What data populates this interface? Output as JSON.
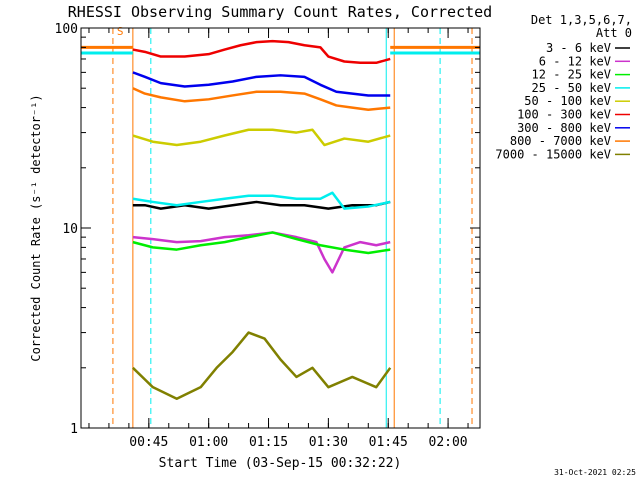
{
  "chart_data": {
    "type": "line",
    "title": "RHESSI Observing Summary Count Rates, Corrected",
    "xlabel": "Start Time (03-Sep-15 00:32:22)",
    "ylabel": "Corrected Count Rate (s⁻¹ detector⁻¹)",
    "yscale": "log",
    "ylim": [
      1,
      100
    ],
    "xlim_minutes_since_midnight": [
      28,
      128
    ],
    "x_ticks": [
      {
        "label": "00:45",
        "minute": 45
      },
      {
        "label": "01:00",
        "minute": 60
      },
      {
        "label": "01:15",
        "minute": 75
      },
      {
        "label": "01:30",
        "minute": 90
      },
      {
        "label": "01:45",
        "minute": 105
      },
      {
        "label": "02:00",
        "minute": 120
      }
    ],
    "y_ticks": [
      {
        "label": "1",
        "value": 1
      },
      {
        "label": "10",
        "value": 10
      },
      {
        "label": "100",
        "value": 100
      }
    ],
    "legend": {
      "position": "right",
      "header": [
        "Det 1,3,5,6,7,",
        "Att 0"
      ]
    },
    "series": [
      {
        "name": "3 - 6 keV",
        "color": "#000000",
        "x": [
          41,
          44,
          48,
          54,
          60,
          66,
          72,
          78,
          84,
          90,
          96,
          102,
          105.5
        ],
        "y": [
          13,
          13,
          12.5,
          13,
          12.5,
          13,
          13.5,
          13,
          13,
          12.5,
          13,
          13,
          13.5
        ]
      },
      {
        "name": "6 - 12 keV",
        "color": "#cc33cc",
        "x": [
          41,
          46,
          52,
          58,
          64,
          70,
          76,
          82,
          87,
          89,
          91,
          94,
          98,
          102,
          105.5
        ],
        "y": [
          9,
          8.8,
          8.5,
          8.6,
          9,
          9.2,
          9.5,
          9,
          8.5,
          7,
          6,
          8,
          8.5,
          8.2,
          8.5
        ]
      },
      {
        "name": "12 - 25 keV",
        "color": "#00ee00",
        "x": [
          41,
          46,
          52,
          58,
          64,
          70,
          76,
          82,
          88,
          94,
          100,
          105.5
        ],
        "y": [
          8.5,
          8,
          7.8,
          8.2,
          8.5,
          9,
          9.5,
          8.8,
          8.2,
          7.8,
          7.5,
          7.8
        ]
      },
      {
        "name": "25 - 50 keV",
        "color": "#00eeee",
        "x": [
          41,
          46,
          52,
          58,
          64,
          70,
          76,
          82,
          88,
          91,
          94,
          100,
          105.5
        ],
        "y": [
          14,
          13.5,
          13,
          13.5,
          14,
          14.5,
          14.5,
          14,
          14,
          15,
          12.5,
          12.8,
          13.5
        ]
      },
      {
        "name": "50 - 100 keV",
        "color": "#cccc00",
        "x": [
          41,
          46,
          52,
          58,
          64,
          70,
          76,
          82,
          86,
          89,
          94,
          100,
          105.5
        ],
        "y": [
          29,
          27,
          26,
          27,
          29,
          31,
          31,
          30,
          31,
          26,
          28,
          27,
          29
        ]
      },
      {
        "name": "100 - 300 keV",
        "color": "#ee0000",
        "x": [
          41,
          44,
          48,
          54,
          60,
          64,
          68,
          72,
          76,
          80,
          84,
          88,
          90,
          94,
          98,
          102,
          105.5
        ],
        "y": [
          78,
          76,
          72,
          72,
          74,
          78,
          82,
          85,
          86,
          85,
          82,
          80,
          72,
          68,
          67,
          67,
          70
        ]
      },
      {
        "name": "300 - 800 keV",
        "color": "#0000ee",
        "x": [
          41,
          44,
          48,
          54,
          60,
          66,
          72,
          78,
          84,
          88,
          92,
          96,
          100,
          105.5
        ],
        "y": [
          60,
          57,
          53,
          51,
          52,
          54,
          57,
          58,
          57,
          52,
          48,
          47,
          46,
          46
        ]
      },
      {
        "name": "800 - 7000 keV",
        "color": "#ff7700",
        "x": [
          41,
          44,
          48,
          54,
          60,
          66,
          72,
          78,
          84,
          88,
          92,
          96,
          100,
          105.5
        ],
        "y": [
          50,
          47,
          45,
          43,
          44,
          46,
          48,
          48,
          47,
          44,
          41,
          40,
          39,
          40
        ]
      },
      {
        "name": "7000 - 15000 keV",
        "color": "#808000",
        "x": [
          41,
          46,
          52,
          58,
          62,
          66,
          70,
          74,
          78,
          82,
          86,
          90,
          96,
          102,
          105.5
        ],
        "y": [
          2,
          1.6,
          1.4,
          1.6,
          2,
          2.4,
          3,
          2.8,
          2.2,
          1.8,
          2,
          1.6,
          1.8,
          1.6,
          2
        ]
      }
    ],
    "annotations": [
      {
        "text": "S",
        "minute": 36,
        "value": 84,
        "color": "#ff7700"
      }
    ],
    "markers": [
      {
        "minute": 36,
        "style": "dashed",
        "color": "#ff7700"
      },
      {
        "minute": 41,
        "style": "solid",
        "color": "#ff7700"
      },
      {
        "minute": 45.5,
        "style": "dashed",
        "color": "#00eeee"
      },
      {
        "minute": 104.5,
        "style": "solid",
        "color": "#00eeee"
      },
      {
        "minute": 106.5,
        "style": "solid",
        "color": "#ff7700"
      },
      {
        "minute": 118,
        "style": "dashed",
        "color": "#00eeee"
      },
      {
        "minute": 126,
        "style": "dashed",
        "color": "#ff7700"
      }
    ],
    "outside_segments": [
      {
        "color": "#ff7700",
        "x": [
          28,
          41
        ],
        "y": [
          80,
          80
        ]
      },
      {
        "color": "#00eeee",
        "x": [
          28,
          41
        ],
        "y": [
          75,
          75
        ]
      },
      {
        "color": "#ff7700",
        "x": [
          105.5,
          128
        ],
        "y": [
          80,
          80
        ]
      },
      {
        "color": "#00eeee",
        "x": [
          105.5,
          128
        ],
        "y": [
          75,
          75
        ]
      }
    ],
    "footer_timestamp": "31-Oct-2021 02:25"
  }
}
